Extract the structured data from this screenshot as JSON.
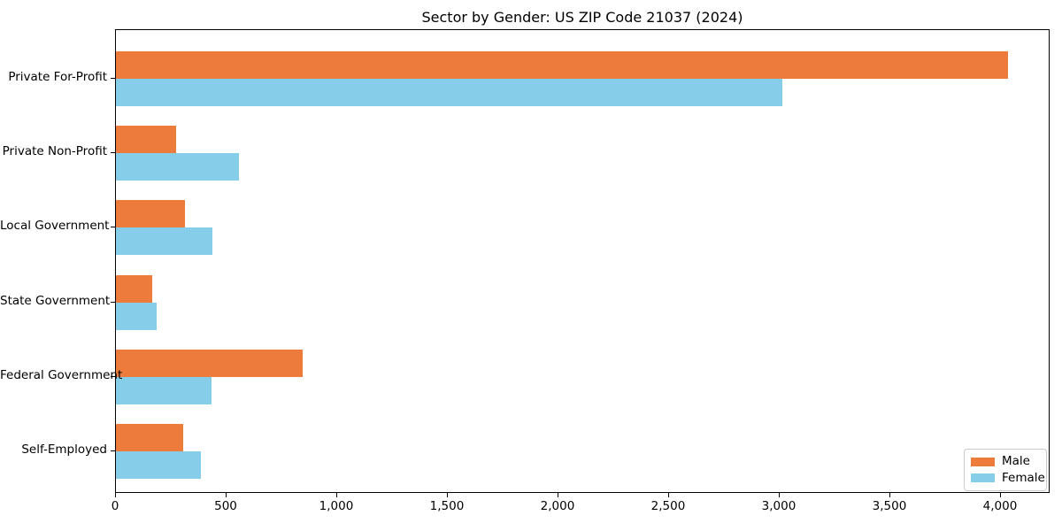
{
  "title": "Sector by Gender: US ZIP Code 21037 (2024)",
  "colors": {
    "male": "#ec7b3c",
    "female": "#85cde9",
    "axis": "#000000",
    "legend_border": "#cccccc",
    "background": "#ffffff"
  },
  "legend": {
    "items": [
      {
        "label": "Male",
        "color_key": "male"
      },
      {
        "label": "Female",
        "color_key": "female"
      }
    ],
    "position": "lower right"
  },
  "chart_data": {
    "type": "bar",
    "orientation": "horizontal",
    "title": "Sector by Gender: US ZIP Code 21037 (2024)",
    "xlabel": "",
    "ylabel": "",
    "categories": [
      "Private For-Profit",
      "Private Non-Profit",
      "Local Government",
      "State Government",
      "Federal Government",
      "Self-Employed"
    ],
    "series": [
      {
        "name": "Male",
        "values": [
          4030,
          270,
          310,
          165,
          845,
          305
        ]
      },
      {
        "name": "Female",
        "values": [
          3010,
          555,
          435,
          185,
          430,
          385
        ]
      }
    ],
    "xlim": [
      0,
      4224
    ],
    "x_ticks": [
      0,
      500,
      1000,
      1500,
      2000,
      2500,
      3000,
      3500,
      4000
    ],
    "x_tick_labels": [
      "0",
      "500",
      "1,000",
      "1,500",
      "2,000",
      "2,500",
      "3,000",
      "3,500",
      "4,000"
    ],
    "grid": false,
    "legend_position": "lower right"
  }
}
